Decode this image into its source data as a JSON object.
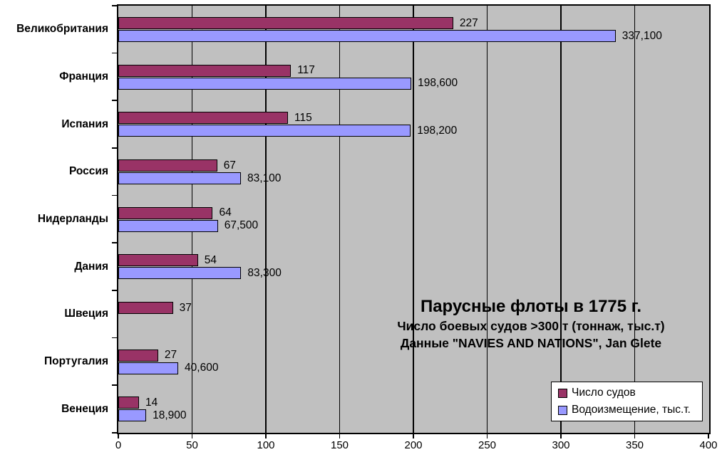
{
  "chart_data": {
    "type": "bar",
    "orientation": "horizontal",
    "title": "Парусные флоты в 1775 г.",
    "subtitle1": "Число боевых судов >300 т (тоннаж, тыс.т)",
    "subtitle2": "Данные \"NAVIES AND NATIONS\", Jan Glete",
    "categories": [
      "Великобритания",
      "Франция",
      "Испания",
      "Россия",
      "Нидерланды",
      "Дания",
      "Швеция",
      "Португалия",
      "Венеция"
    ],
    "series": [
      {
        "name": "Число судов",
        "color": "#993366",
        "values": [
          227,
          117,
          115,
          67,
          64,
          54,
          37,
          27,
          14
        ],
        "labels": [
          "227",
          "117",
          "115",
          "67",
          "64",
          "54",
          "37",
          "27",
          "14"
        ]
      },
      {
        "name": "Водоизмещение, тыс.т.",
        "color": "#9999FF",
        "values": [
          337.1,
          198.6,
          198.2,
          83.1,
          67.5,
          83.3,
          null,
          40.6,
          18.9
        ],
        "labels": [
          "337,100",
          "198,600",
          "198,200",
          "83,100",
          "67,500",
          "83,300",
          "",
          "40,600",
          "18,900"
        ]
      }
    ],
    "x_ticks": [
      0,
      50,
      100,
      150,
      200,
      250,
      300,
      350,
      400
    ],
    "x_tick_labels": [
      "0",
      "50",
      "100",
      "150",
      "200",
      "250",
      "300",
      "350",
      "400"
    ],
    "xlim": [
      0,
      400
    ],
    "grid": true,
    "plot_bg_color": "#C0C0C0",
    "gridline_color": "#000000",
    "legend_position": "bottom-right"
  }
}
